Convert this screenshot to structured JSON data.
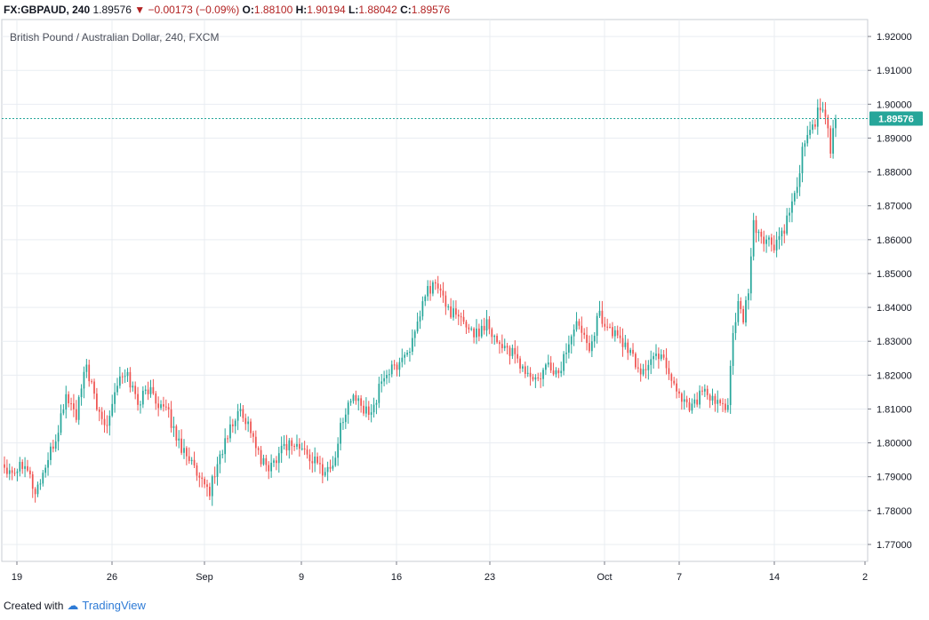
{
  "header": {
    "symbol": "FX:GBPAUD, 240",
    "last": "1.89576",
    "change": "−0.00173 (−0.09%)",
    "open_label": "O:",
    "open": "1.88100",
    "high_label": "H:",
    "high": "1.90194",
    "low_label": "L:",
    "low": "1.88042",
    "close_label": "C:",
    "close": "1.89576"
  },
  "footer": {
    "created_with": "Created with",
    "brand": "TradingView"
  },
  "colors": {
    "up": "#26a69a",
    "down": "#ef5350",
    "grid": "#e9edf2",
    "axis": "#787b86",
    "price_line": "#26a69a",
    "price_tag": "#26a69a"
  },
  "chart_data": {
    "type": "candlestick",
    "title": "British Pound / Australian Dollar, 240, FXCM",
    "ylim": [
      1.765,
      1.925
    ],
    "y_ticks": [
      "1.92000",
      "1.91000",
      "1.90000",
      "1.89000",
      "1.88000",
      "1.87000",
      "1.86000",
      "1.85000",
      "1.84000",
      "1.83000",
      "1.82000",
      "1.81000",
      "1.80000",
      "1.79000",
      "1.78000",
      "1.77000"
    ],
    "x_ticks": [
      "19",
      "26",
      "Sep",
      "9",
      "16",
      "23",
      "Oct",
      "7",
      "14",
      "2"
    ],
    "last_price": "1.89576",
    "grid": true,
    "anchors": [
      [
        0,
        1.793
      ],
      [
        4,
        1.792
      ],
      [
        8,
        1.795
      ],
      [
        12,
        1.785
      ],
      [
        16,
        1.793
      ],
      [
        20,
        1.801
      ],
      [
        24,
        1.814
      ],
      [
        28,
        1.808
      ],
      [
        32,
        1.823
      ],
      [
        36,
        1.81
      ],
      [
        40,
        1.806
      ],
      [
        44,
        1.818
      ],
      [
        48,
        1.82
      ],
      [
        52,
        1.812
      ],
      [
        56,
        1.816
      ],
      [
        60,
        1.812
      ],
      [
        64,
        1.808
      ],
      [
        68,
        1.8
      ],
      [
        72,
        1.796
      ],
      [
        76,
        1.788
      ],
      [
        80,
        1.786
      ],
      [
        84,
        1.796
      ],
      [
        88,
        1.804
      ],
      [
        92,
        1.81
      ],
      [
        96,
        1.804
      ],
      [
        100,
        1.794
      ],
      [
        104,
        1.793
      ],
      [
        108,
        1.799
      ],
      [
        112,
        1.8
      ],
      [
        116,
        1.798
      ],
      [
        120,
        1.795
      ],
      [
        124,
        1.792
      ],
      [
        128,
        1.793
      ],
      [
        132,
        1.808
      ],
      [
        136,
        1.814
      ],
      [
        140,
        1.809
      ],
      [
        144,
        1.811
      ],
      [
        148,
        1.82
      ],
      [
        152,
        1.822
      ],
      [
        156,
        1.826
      ],
      [
        160,
        1.831
      ],
      [
        164,
        1.844
      ],
      [
        168,
        1.847
      ],
      [
        172,
        1.841
      ],
      [
        176,
        1.837
      ],
      [
        180,
        1.835
      ],
      [
        184,
        1.832
      ],
      [
        188,
        1.836
      ],
      [
        192,
        1.83
      ],
      [
        196,
        1.828
      ],
      [
        200,
        1.824
      ],
      [
        204,
        1.82
      ],
      [
        208,
        1.818
      ],
      [
        212,
        1.823
      ],
      [
        216,
        1.82
      ],
      [
        220,
        1.83
      ],
      [
        224,
        1.836
      ],
      [
        228,
        1.829
      ],
      [
        232,
        1.838
      ],
      [
        236,
        1.833
      ],
      [
        240,
        1.831
      ],
      [
        244,
        1.826
      ],
      [
        248,
        1.821
      ],
      [
        252,
        1.824
      ],
      [
        256,
        1.827
      ],
      [
        260,
        1.819
      ],
      [
        264,
        1.813
      ],
      [
        268,
        1.811
      ],
      [
        272,
        1.815
      ],
      [
        276,
        1.812
      ],
      [
        280,
        1.811
      ],
      [
        282,
        1.812
      ],
      [
        284,
        1.832
      ],
      [
        286,
        1.84
      ],
      [
        288,
        1.836
      ],
      [
        290,
        1.845
      ],
      [
        292,
        1.864
      ],
      [
        296,
        1.86
      ],
      [
        300,
        1.858
      ],
      [
        304,
        1.863
      ],
      [
        308,
        1.872
      ],
      [
        312,
        1.89
      ],
      [
        316,
        1.895
      ],
      [
        318,
        1.9
      ],
      [
        320,
        1.896
      ],
      [
        322,
        1.886
      ],
      [
        324,
        1.896
      ]
    ]
  }
}
